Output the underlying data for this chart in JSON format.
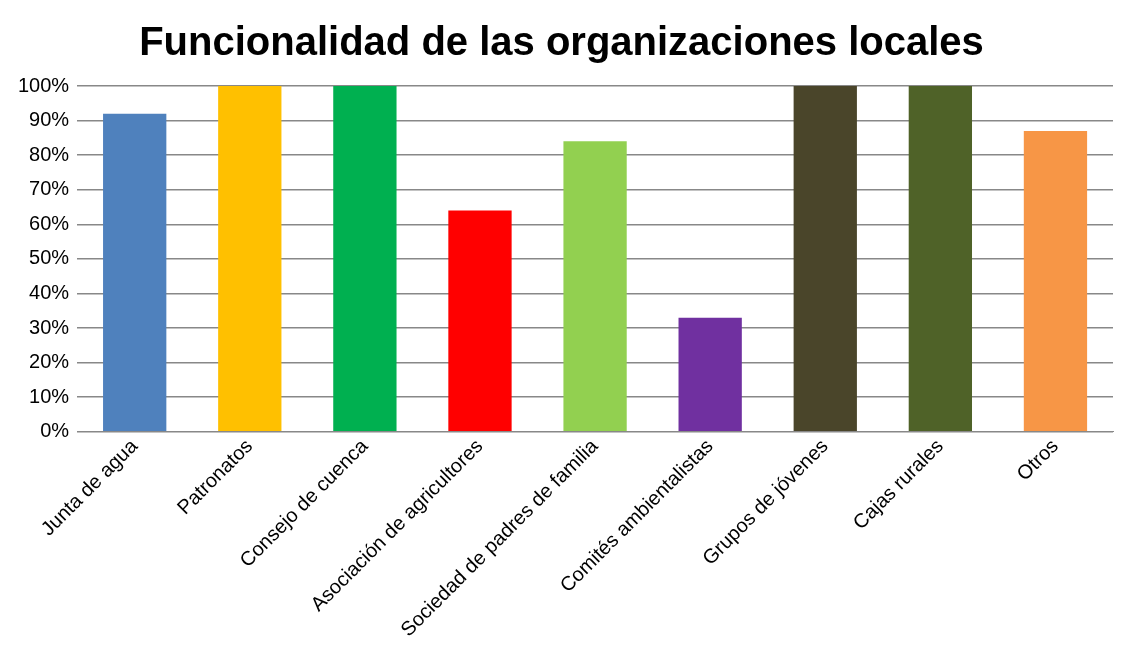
{
  "chart_data": {
    "type": "bar",
    "title": "Funcionalidad de las organizaciones locales",
    "categories": [
      "Junta de agua",
      "Patronatos",
      "Consejo de cuenca",
      "Asociación de agricultores",
      "Sociedad de padres de familia",
      "Comités ambientalistas",
      "Grupos de jóvenes",
      "Cajas rurales",
      "Otros"
    ],
    "values": [
      92,
      100,
      100,
      64,
      84,
      33,
      100,
      100,
      87
    ],
    "colors": [
      "#4f81bd",
      "#ffc000",
      "#00b050",
      "#ff0000",
      "#92d050",
      "#7030a0",
      "#4a452a",
      "#4f6228",
      "#f79646"
    ],
    "ylim": [
      0,
      100
    ],
    "yticks": [
      {
        "value": 0,
        "label": "0%"
      },
      {
        "value": 10,
        "label": "10%"
      },
      {
        "value": 20,
        "label": "20%"
      },
      {
        "value": 30,
        "label": "30%"
      },
      {
        "value": 40,
        "label": "40%"
      },
      {
        "value": 50,
        "label": "50%"
      },
      {
        "value": 60,
        "label": "60%"
      },
      {
        "value": 70,
        "label": "70%"
      },
      {
        "value": 80,
        "label": "80%"
      },
      {
        "value": 90,
        "label": "90%"
      },
      {
        "value": 100,
        "label": "100%"
      }
    ],
    "grid": "y",
    "legend": false
  }
}
